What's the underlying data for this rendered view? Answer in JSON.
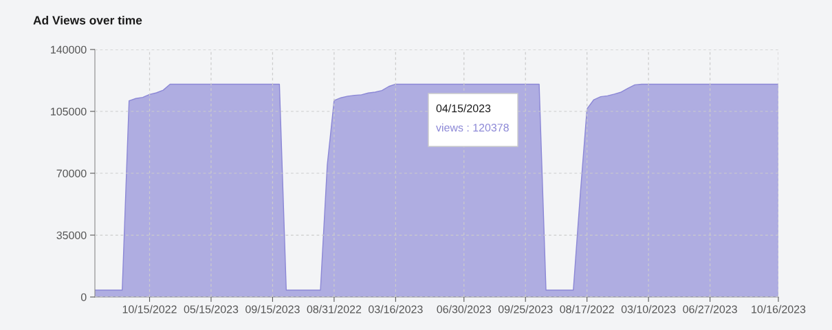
{
  "chart_data": {
    "type": "area",
    "title": "Ad Views over time",
    "categories": [
      null,
      null,
      null,
      null,
      null,
      null,
      null,
      null,
      "10/15/2022",
      null,
      null,
      null,
      null,
      null,
      null,
      null,
      null,
      "05/15/2023",
      null,
      null,
      null,
      null,
      null,
      null,
      null,
      null,
      "09/15/2023",
      null,
      null,
      null,
      null,
      null,
      null,
      null,
      null,
      "08/31/2022",
      null,
      null,
      null,
      null,
      null,
      null,
      null,
      null,
      "03/16/2023",
      null,
      null,
      null,
      null,
      null,
      null,
      null,
      null,
      null,
      "06/30/2023",
      null,
      null,
      null,
      null,
      null,
      null,
      null,
      null,
      "09/25/2023",
      null,
      null,
      null,
      null,
      null,
      null,
      null,
      null,
      "08/17/2022",
      null,
      null,
      null,
      null,
      null,
      null,
      null,
      null,
      "03/10/2023",
      null,
      null,
      null,
      null,
      null,
      null,
      null,
      null,
      "06/27/2023",
      null,
      null,
      null,
      null,
      null,
      null,
      null,
      null,
      null,
      "10/16/2023"
    ],
    "series": [
      {
        "color": "#8b87d6",
        "values": [
          3900,
          3900,
          3900,
          3900,
          3900,
          111000,
          112300,
          112900,
          114600,
          115500,
          117000,
          120378,
          120378,
          120378,
          120378,
          120378,
          120378,
          120378,
          120378,
          120378,
          120378,
          120378,
          120378,
          120378,
          120378,
          120378,
          120378,
          120378,
          3900,
          3900,
          3900,
          3900,
          3900,
          3900,
          74700,
          111200,
          112700,
          113600,
          114100,
          114400,
          115400,
          115900,
          116800,
          119100,
          120378,
          120378,
          120378,
          120378,
          120378,
          120378,
          120378,
          120378,
          120378,
          120378,
          120378,
          120378,
          120378,
          120378,
          120378,
          120378,
          120378,
          120378,
          120378,
          120378,
          120378,
          120378,
          3900,
          3900,
          3900,
          3900,
          3900,
          57200,
          106400,
          111600,
          113300,
          113800,
          114800,
          115900,
          118100,
          120000,
          120378,
          120378,
          120378,
          120378,
          120378,
          120378,
          120378,
          120378,
          120378,
          120378,
          120378,
          120378,
          120378,
          120378,
          120378,
          120378,
          120378,
          120378,
          120378,
          120378,
          120378
        ]
      }
    ],
    "ylim": [
      0,
      140000
    ],
    "yticks": [
      0,
      35000,
      70000,
      105000,
      140000
    ],
    "grid": true,
    "annotations": [
      "04/15/2023",
      "views : 120378"
    ]
  }
}
